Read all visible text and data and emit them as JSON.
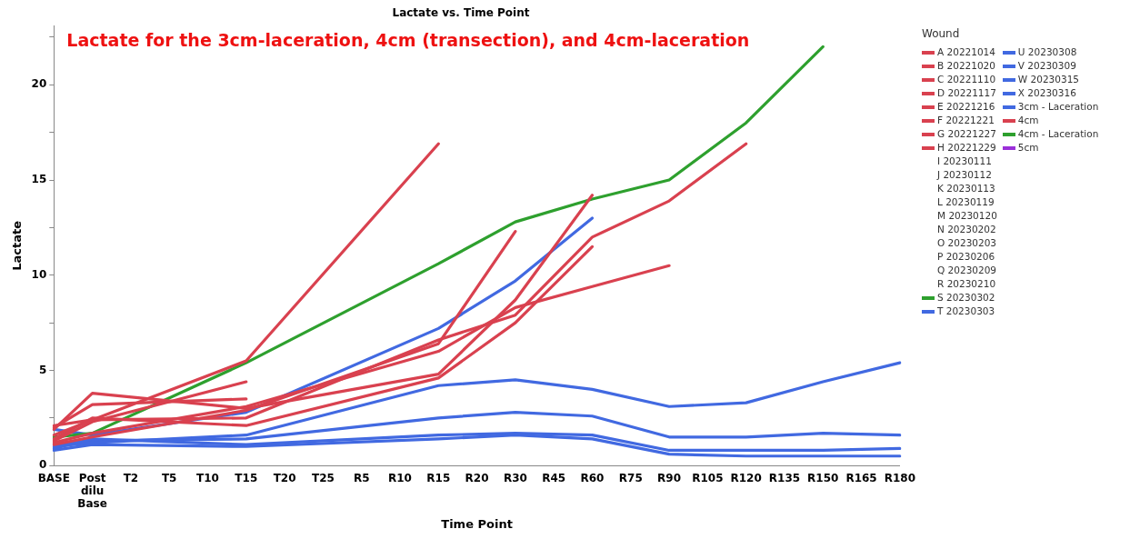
{
  "chart_data": {
    "type": "line",
    "title": "Lactate vs. Time Point",
    "xlabel": "Time Point",
    "ylabel": "Lactate",
    "legend_title": "Wound",
    "annotations": [
      "Lactate for the 3cm-laceration, 4cm (transection), and 4cm-laceration"
    ],
    "categories": [
      "BASE",
      "Post dilu Base",
      "T2",
      "T5",
      "T10",
      "T15",
      "T20",
      "T25",
      "R5",
      "R10",
      "R15",
      "R20",
      "R30",
      "R45",
      "R60",
      "R75",
      "R90",
      "R105",
      "R120",
      "R135",
      "R150",
      "R165",
      "R180"
    ],
    "ylim": [
      0,
      23.1
    ],
    "yticks": [
      0,
      {
        "value": 2.5,
        "label": null
      },
      5,
      {
        "value": 7.5,
        "label": null
      },
      10,
      {
        "value": 12.5,
        "label": null
      },
      15,
      {
        "value": 17.5,
        "label": null
      },
      20,
      {
        "value": 22.5,
        "label": null
      }
    ],
    "grid": false,
    "legend": "right",
    "line_style": "solid",
    "series": [
      {
        "name": "A 20221014",
        "color": "#d9414f",
        "values": [
          1.9,
          3.8,
          null,
          null,
          null,
          3.0,
          null,
          null,
          null,
          null,
          4.8,
          null,
          8.7,
          null,
          14.2,
          null,
          null,
          null,
          null,
          null,
          null,
          null,
          null
        ]
      },
      {
        "name": "B 20221020",
        "color": "#d9414f",
        "values": [
          1.6,
          2.4,
          null,
          null,
          null,
          2.5,
          null,
          null,
          null,
          null,
          6.6,
          null,
          7.9,
          null,
          12.0,
          null,
          13.9,
          null,
          16.9,
          null,
          null,
          null,
          null
        ]
      },
      {
        "name": "C 20221110",
        "color": "#d9414f",
        "values": [
          2.1,
          2.4,
          null,
          null,
          null,
          5.5,
          null,
          null,
          null,
          null,
          16.9,
          null,
          null,
          null,
          null,
          null,
          null,
          null,
          null,
          null,
          null,
          null,
          null
        ]
      },
      {
        "name": "D 20221117",
        "color": "#d9414f",
        "values": [
          2.0,
          3.2,
          null,
          null,
          null,
          3.5,
          null,
          null,
          null,
          null,
          null,
          null,
          null,
          null,
          null,
          null,
          null,
          null,
          null,
          null,
          null,
          null,
          null
        ]
      },
      {
        "name": "E 20221216",
        "color": "#d9414f",
        "values": [
          1.2,
          1.7,
          null,
          null,
          null,
          3.1,
          null,
          null,
          null,
          null,
          6.0,
          null,
          8.3,
          null,
          9.4,
          null,
          10.5,
          null,
          null,
          null,
          null,
          null,
          null
        ]
      },
      {
        "name": "F 20221221",
        "color": "#d9414f",
        "values": [
          1.1,
          1.5,
          null,
          null,
          null,
          2.9,
          null,
          null,
          null,
          null,
          6.4,
          null,
          12.3,
          null,
          null,
          null,
          null,
          null,
          null,
          null,
          null,
          null,
          null
        ]
      },
      {
        "name": "G 20221227",
        "color": "#d9414f",
        "values": [
          1.4,
          2.5,
          null,
          null,
          null,
          2.1,
          null,
          null,
          null,
          null,
          4.6,
          null,
          7.5,
          null,
          11.5,
          null,
          null,
          null,
          null,
          null,
          null,
          null,
          null
        ]
      },
      {
        "name": "H 20221229",
        "color": "#d9414f",
        "values": [
          1.3,
          2.3,
          null,
          null,
          null,
          4.4,
          null,
          null,
          null,
          null,
          null,
          null,
          null,
          null,
          null,
          null,
          null,
          null,
          null,
          null,
          null,
          null,
          null
        ]
      },
      {
        "name": "I 20230111",
        "values": [
          null,
          null,
          null,
          null,
          null,
          null,
          null,
          null,
          null,
          null,
          null,
          null,
          null,
          null,
          null,
          null,
          null,
          null,
          null,
          null,
          null,
          null,
          null
        ]
      },
      {
        "name": "J 20230112",
        "values": [
          null,
          null,
          null,
          null,
          null,
          null,
          null,
          null,
          null,
          null,
          null,
          null,
          null,
          null,
          null,
          null,
          null,
          null,
          null,
          null,
          null,
          null,
          null
        ]
      },
      {
        "name": "K 20230113",
        "values": [
          null,
          null,
          null,
          null,
          null,
          null,
          null,
          null,
          null,
          null,
          null,
          null,
          null,
          null,
          null,
          null,
          null,
          null,
          null,
          null,
          null,
          null,
          null
        ]
      },
      {
        "name": "L 20230119",
        "values": [
          null,
          null,
          null,
          null,
          null,
          null,
          null,
          null,
          null,
          null,
          null,
          null,
          null,
          null,
          null,
          null,
          null,
          null,
          null,
          null,
          null,
          null,
          null
        ]
      },
      {
        "name": "M 20230120",
        "values": [
          null,
          null,
          null,
          null,
          null,
          null,
          null,
          null,
          null,
          null,
          null,
          null,
          null,
          null,
          null,
          null,
          null,
          null,
          null,
          null,
          null,
          null,
          null
        ]
      },
      {
        "name": "N 20230202",
        "values": [
          null,
          null,
          null,
          null,
          null,
          null,
          null,
          null,
          null,
          null,
          null,
          null,
          null,
          null,
          null,
          null,
          null,
          null,
          null,
          null,
          null,
          null,
          null
        ]
      },
      {
        "name": "O 20230203",
        "values": [
          null,
          null,
          null,
          null,
          null,
          null,
          null,
          null,
          null,
          null,
          null,
          null,
          null,
          null,
          null,
          null,
          null,
          null,
          null,
          null,
          null,
          null,
          null
        ]
      },
      {
        "name": "P 20230206",
        "values": [
          null,
          null,
          null,
          null,
          null,
          null,
          null,
          null,
          null,
          null,
          null,
          null,
          null,
          null,
          null,
          null,
          null,
          null,
          null,
          null,
          null,
          null,
          null
        ]
      },
      {
        "name": "Q 20230209",
        "values": [
          null,
          null,
          null,
          null,
          null,
          null,
          null,
          null,
          null,
          null,
          null,
          null,
          null,
          null,
          null,
          null,
          null,
          null,
          null,
          null,
          null,
          null,
          null
        ]
      },
      {
        "name": "R 20230210",
        "values": [
          null,
          null,
          null,
          null,
          null,
          null,
          null,
          null,
          null,
          null,
          null,
          null,
          null,
          null,
          null,
          null,
          null,
          null,
          null,
          null,
          null,
          null,
          null
        ]
      },
      {
        "name": "S 20230302",
        "color": "#2ea02e",
        "values": [
          1.5,
          1.7,
          null,
          null,
          null,
          5.4,
          null,
          null,
          null,
          null,
          10.6,
          null,
          12.8,
          null,
          14.0,
          null,
          15.0,
          null,
          18.0,
          null,
          22.0,
          null,
          null
        ]
      },
      {
        "name": "T 20230303",
        "color": "#4169e1",
        "values": [
          1.9,
          1.6,
          null,
          null,
          null,
          2.8,
          null,
          null,
          null,
          null,
          7.2,
          null,
          9.7,
          null,
          13.0,
          null,
          null,
          null,
          null,
          null,
          null,
          null,
          null
        ]
      },
      {
        "name": "U 20230308",
        "color": "#4169e1",
        "values": [
          1.0,
          1.2,
          null,
          null,
          null,
          1.6,
          null,
          null,
          null,
          null,
          4.2,
          null,
          4.5,
          null,
          4.0,
          null,
          3.1,
          null,
          3.3,
          null,
          4.4,
          null,
          5.4
        ]
      },
      {
        "name": "V 20230309",
        "color": "#4169e1",
        "values": [
          0.8,
          1.1,
          null,
          null,
          null,
          1.0,
          null,
          null,
          null,
          null,
          1.4,
          null,
          1.6,
          null,
          1.4,
          null,
          0.6,
          null,
          0.5,
          null,
          0.5,
          null,
          0.5
        ]
      },
      {
        "name": "W 20230315",
        "color": "#4169e1",
        "values": [
          0.9,
          1.4,
          null,
          null,
          null,
          1.1,
          null,
          null,
          null,
          null,
          1.6,
          null,
          1.7,
          null,
          1.6,
          null,
          0.8,
          null,
          0.8,
          null,
          0.8,
          null,
          0.9
        ]
      },
      {
        "name": "X 20230316",
        "color": "#4169e1",
        "values": [
          1.1,
          1.3,
          null,
          null,
          null,
          1.4,
          null,
          null,
          null,
          null,
          2.5,
          null,
          2.8,
          null,
          2.6,
          null,
          1.5,
          null,
          1.5,
          null,
          1.7,
          null,
          1.6
        ]
      },
      {
        "name": "3cm - Laceration",
        "color": "#4169e1",
        "values": [
          null,
          null,
          null,
          null,
          null,
          null,
          null,
          null,
          null,
          null,
          null,
          null,
          null,
          null,
          null,
          null,
          null,
          null,
          null,
          null,
          null,
          null,
          null
        ]
      },
      {
        "name": "4cm",
        "color": "#d9414f",
        "values": [
          null,
          null,
          null,
          null,
          null,
          null,
          null,
          null,
          null,
          null,
          null,
          null,
          null,
          null,
          null,
          null,
          null,
          null,
          null,
          null,
          null,
          null,
          null
        ]
      },
      {
        "name": "4cm - Laceration",
        "color": "#2ea02e",
        "values": [
          null,
          null,
          null,
          null,
          null,
          null,
          null,
          null,
          null,
          null,
          null,
          null,
          null,
          null,
          null,
          null,
          null,
          null,
          null,
          null,
          null,
          null,
          null
        ]
      },
      {
        "name": "5cm",
        "color": "#9b30d9",
        "values": [
          null,
          null,
          null,
          null,
          null,
          null,
          null,
          null,
          null,
          null,
          null,
          null,
          null,
          null,
          null,
          null,
          null,
          null,
          null,
          null,
          null,
          null,
          null
        ]
      }
    ]
  }
}
